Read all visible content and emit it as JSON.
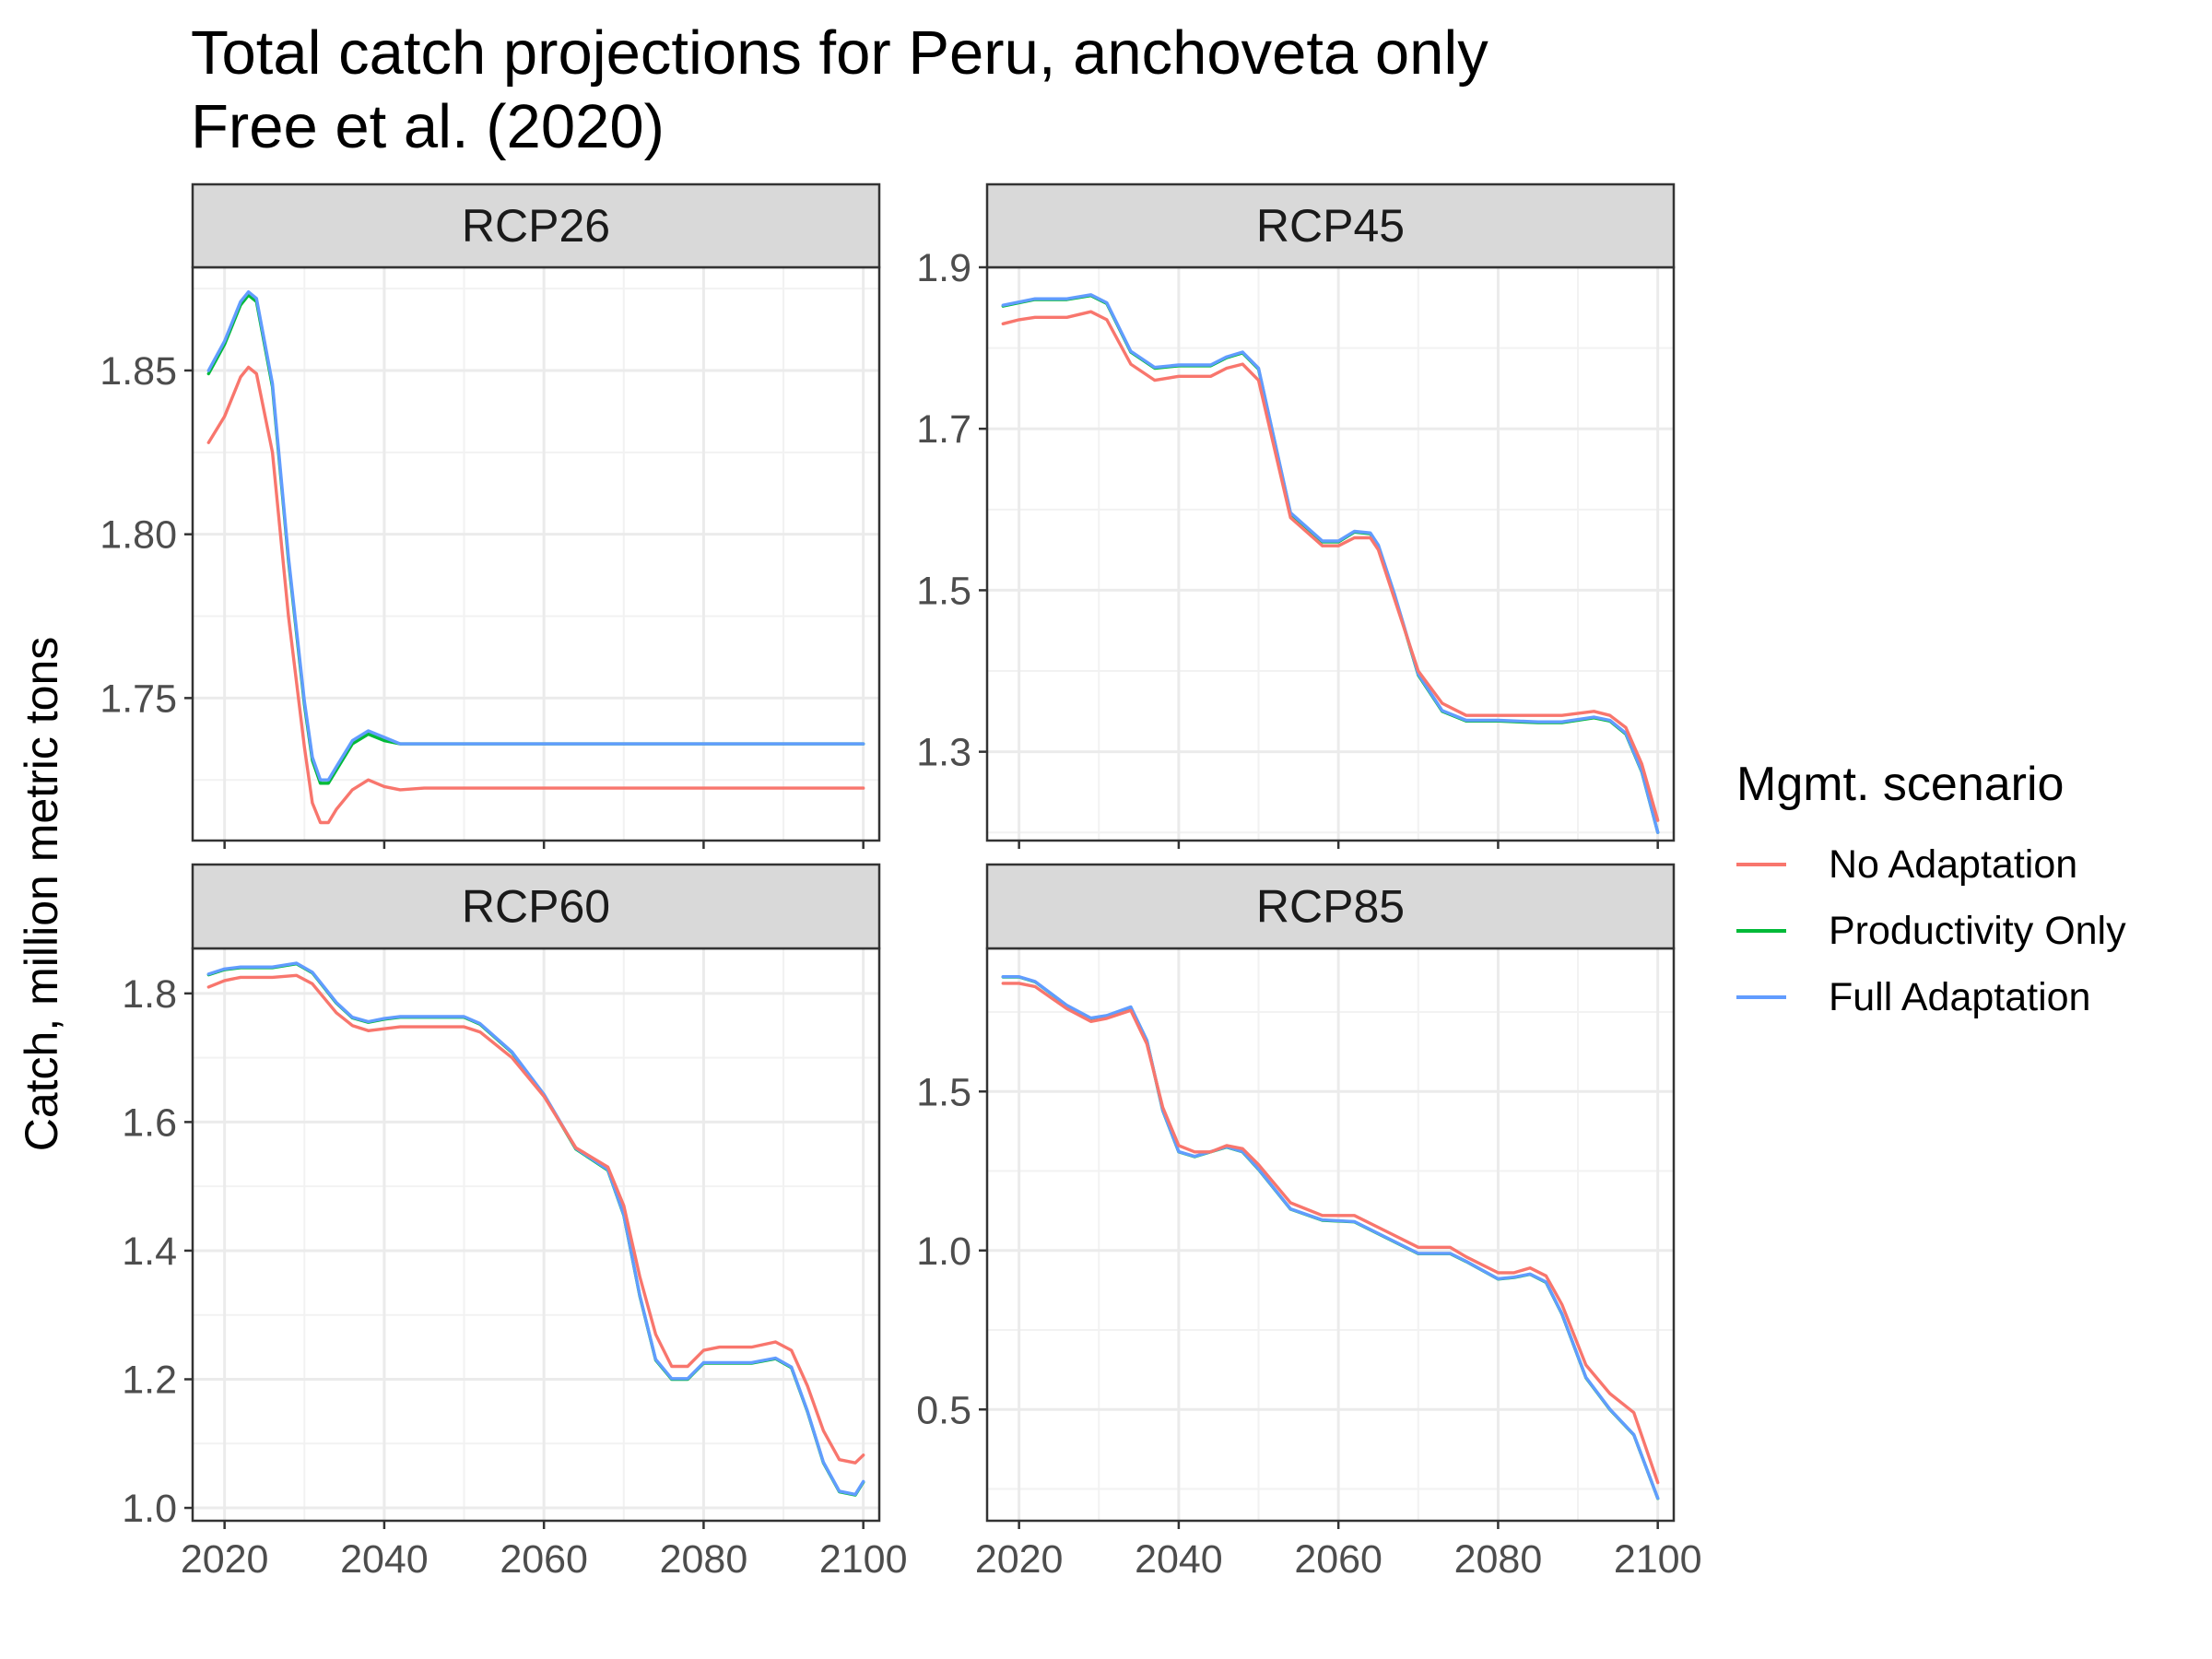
{
  "chart_data": {
    "type": "line",
    "title": "Total catch projections for Peru, anchoveta only",
    "subtitle": "Free et al. (2020)",
    "ylabel": "Catch, million metric tons",
    "xlabel": "",
    "legend": {
      "title": "Mgmt. scenario",
      "placement": "right",
      "entries": [
        {
          "name": "No Adaptation",
          "color": "#F8766D"
        },
        {
          "name": "Productivity Only",
          "color": "#00BA38"
        },
        {
          "name": "Full Adaptation",
          "color": "#619CFF"
        }
      ]
    },
    "grid": true,
    "panels": [
      {
        "label": "RCP26",
        "xlim": [
          2016,
          2102
        ],
        "ylim": [
          1.7065,
          1.8815
        ],
        "x_ticks": [
          2020,
          2040,
          2060,
          2080,
          2100
        ],
        "y_ticks": [
          1.75,
          1.8,
          1.85
        ],
        "y_tick_labels": [
          "1.75",
          "1.80",
          "1.85"
        ],
        "series": [
          {
            "name": "No Adaptation",
            "x": [
              2018,
              2020,
              2022,
              2023,
              2024,
              2026,
              2028,
              2030,
              2031,
              2032,
              2033,
              2034,
              2036,
              2038,
              2040,
              2042,
              2045,
              2050,
              2060,
              2070,
              2080,
              2090,
              2100
            ],
            "y": [
              1.828,
              1.836,
              1.848,
              1.851,
              1.849,
              1.825,
              1.775,
              1.735,
              1.718,
              1.712,
              1.712,
              1.716,
              1.722,
              1.725,
              1.723,
              1.722,
              1.7225,
              1.7225,
              1.7225,
              1.7225,
              1.7225,
              1.7225,
              1.7225
            ]
          },
          {
            "name": "Productivity Only",
            "x": [
              2018,
              2020,
              2022,
              2023,
              2024,
              2026,
              2028,
              2030,
              2031,
              2032,
              2033,
              2034,
              2036,
              2038,
              2040,
              2042,
              2045,
              2050,
              2060,
              2070,
              2080,
              2090,
              2100
            ],
            "y": [
              1.849,
              1.858,
              1.87,
              1.873,
              1.871,
              1.845,
              1.792,
              1.748,
              1.731,
              1.724,
              1.724,
              1.728,
              1.736,
              1.739,
              1.737,
              1.736,
              1.736,
              1.736,
              1.736,
              1.736,
              1.736,
              1.736,
              1.736
            ]
          },
          {
            "name": "Full Adaptation",
            "x": [
              2018,
              2020,
              2022,
              2023,
              2024,
              2026,
              2028,
              2030,
              2031,
              2032,
              2033,
              2034,
              2036,
              2038,
              2040,
              2042,
              2045,
              2050,
              2060,
              2070,
              2080,
              2090,
              2100
            ],
            "y": [
              1.85,
              1.859,
              1.871,
              1.874,
              1.872,
              1.846,
              1.793,
              1.749,
              1.732,
              1.725,
              1.725,
              1.729,
              1.737,
              1.74,
              1.738,
              1.736,
              1.736,
              1.736,
              1.736,
              1.736,
              1.736,
              1.736,
              1.736
            ]
          }
        ]
      },
      {
        "label": "RCP45",
        "xlim": [
          2016,
          2102
        ],
        "ylim": [
          1.19,
          1.9
        ],
        "x_ticks": [
          2020,
          2040,
          2060,
          2080,
          2100
        ],
        "y_ticks": [
          1.3,
          1.5,
          1.7,
          1.9
        ],
        "y_tick_labels": [
          "1.3",
          "1.5",
          "1.7",
          "1.9"
        ],
        "series": [
          {
            "name": "No Adaptation",
            "x": [
              2018,
              2020,
              2022,
              2026,
              2029,
              2031,
              2034,
              2037,
              2040,
              2044,
              2046,
              2048,
              2050,
              2054,
              2058,
              2060,
              2062,
              2064,
              2065,
              2067,
              2070,
              2073,
              2076,
              2080,
              2085,
              2088,
              2092,
              2094,
              2096,
              2098,
              2100
            ],
            "y": [
              1.83,
              1.835,
              1.838,
              1.838,
              1.845,
              1.835,
              1.78,
              1.76,
              1.765,
              1.765,
              1.775,
              1.78,
              1.76,
              1.59,
              1.555,
              1.555,
              1.565,
              1.565,
              1.55,
              1.49,
              1.4,
              1.36,
              1.345,
              1.345,
              1.345,
              1.345,
              1.35,
              1.345,
              1.33,
              1.285,
              1.215
            ]
          },
          {
            "name": "Productivity Only",
            "x": [
              2018,
              2020,
              2022,
              2026,
              2029,
              2031,
              2034,
              2037,
              2040,
              2044,
              2046,
              2048,
              2050,
              2054,
              2058,
              2060,
              2062,
              2064,
              2065,
              2067,
              2070,
              2073,
              2076,
              2080,
              2085,
              2088,
              2092,
              2094,
              2096,
              2098,
              2100
            ],
            "y": [
              1.852,
              1.856,
              1.86,
              1.86,
              1.865,
              1.855,
              1.795,
              1.775,
              1.778,
              1.778,
              1.788,
              1.794,
              1.774,
              1.595,
              1.56,
              1.56,
              1.572,
              1.57,
              1.555,
              1.495,
              1.395,
              1.35,
              1.338,
              1.338,
              1.336,
              1.336,
              1.342,
              1.338,
              1.322,
              1.275,
              1.2
            ]
          },
          {
            "name": "Full Adaptation",
            "x": [
              2018,
              2020,
              2022,
              2026,
              2029,
              2031,
              2034,
              2037,
              2040,
              2044,
              2046,
              2048,
              2050,
              2054,
              2058,
              2060,
              2062,
              2064,
              2065,
              2067,
              2070,
              2073,
              2076,
              2080,
              2085,
              2088,
              2092,
              2094,
              2096,
              2098,
              2100
            ],
            "y": [
              1.853,
              1.857,
              1.861,
              1.861,
              1.866,
              1.856,
              1.796,
              1.776,
              1.779,
              1.779,
              1.789,
              1.795,
              1.775,
              1.596,
              1.561,
              1.561,
              1.573,
              1.571,
              1.556,
              1.496,
              1.396,
              1.351,
              1.339,
              1.339,
              1.337,
              1.337,
              1.343,
              1.339,
              1.323,
              1.276,
              1.2
            ]
          }
        ]
      },
      {
        "label": "RCP60",
        "xlim": [
          2016,
          2102
        ],
        "ylim": [
          0.98,
          1.87
        ],
        "x_ticks": [
          2020,
          2040,
          2060,
          2080,
          2100
        ],
        "y_ticks": [
          1.0,
          1.2,
          1.4,
          1.6,
          1.8
        ],
        "y_tick_labels": [
          "1.0",
          "1.2",
          "1.4",
          "1.6",
          "1.8"
        ],
        "series": [
          {
            "name": "No Adaptation",
            "x": [
              2018,
              2020,
              2022,
              2026,
              2029,
              2031,
              2034,
              2036,
              2038,
              2040,
              2042,
              2046,
              2050,
              2052,
              2056,
              2060,
              2064,
              2068,
              2070,
              2072,
              2074,
              2076,
              2078,
              2080,
              2082,
              2086,
              2089,
              2091,
              2093,
              2095,
              2097,
              2099,
              2100
            ],
            "y": [
              1.81,
              1.82,
              1.825,
              1.825,
              1.828,
              1.815,
              1.77,
              1.75,
              1.742,
              1.745,
              1.748,
              1.748,
              1.748,
              1.74,
              1.7,
              1.64,
              1.56,
              1.53,
              1.47,
              1.36,
              1.27,
              1.22,
              1.22,
              1.245,
              1.25,
              1.25,
              1.258,
              1.245,
              1.19,
              1.12,
              1.075,
              1.07,
              1.082
            ]
          },
          {
            "name": "Productivity Only",
            "x": [
              2018,
              2020,
              2022,
              2026,
              2029,
              2031,
              2034,
              2036,
              2038,
              2040,
              2042,
              2046,
              2050,
              2052,
              2056,
              2060,
              2064,
              2068,
              2070,
              2072,
              2074,
              2076,
              2078,
              2080,
              2082,
              2086,
              2089,
              2091,
              2093,
              2095,
              2097,
              2099,
              2100
            ],
            "y": [
              1.829,
              1.837,
              1.84,
              1.84,
              1.846,
              1.832,
              1.785,
              1.762,
              1.755,
              1.76,
              1.763,
              1.763,
              1.763,
              1.752,
              1.708,
              1.642,
              1.558,
              1.525,
              1.455,
              1.33,
              1.23,
              1.2,
              1.2,
              1.225,
              1.225,
              1.225,
              1.232,
              1.218,
              1.15,
              1.07,
              1.025,
              1.02,
              1.04
            ]
          },
          {
            "name": "Full Adaptation",
            "x": [
              2018,
              2020,
              2022,
              2026,
              2029,
              2031,
              2034,
              2036,
              2038,
              2040,
              2042,
              2046,
              2050,
              2052,
              2056,
              2060,
              2064,
              2068,
              2070,
              2072,
              2074,
              2076,
              2078,
              2080,
              2082,
              2086,
              2089,
              2091,
              2093,
              2095,
              2097,
              2099,
              2100
            ],
            "y": [
              1.83,
              1.838,
              1.841,
              1.841,
              1.847,
              1.833,
              1.786,
              1.763,
              1.756,
              1.761,
              1.764,
              1.764,
              1.764,
              1.753,
              1.709,
              1.643,
              1.559,
              1.526,
              1.456,
              1.331,
              1.231,
              1.201,
              1.201,
              1.226,
              1.226,
              1.226,
              1.233,
              1.219,
              1.151,
              1.071,
              1.026,
              1.021,
              1.041
            ]
          }
        ]
      },
      {
        "label": "RCP85",
        "xlim": [
          2016,
          2102
        ],
        "ylim": [
          0.15,
          1.95
        ],
        "x_ticks": [
          2020,
          2040,
          2060,
          2080,
          2100
        ],
        "y_ticks": [
          0.5,
          1.0,
          1.5
        ],
        "y_tick_labels": [
          "0.5",
          "1.0",
          "1.5"
        ],
        "series": [
          {
            "name": "No Adaptation",
            "x": [
              2018,
              2020,
              2022,
              2026,
              2029,
              2031,
              2034,
              2036,
              2038,
              2040,
              2042,
              2044,
              2046,
              2048,
              2050,
              2054,
              2058,
              2062,
              2066,
              2070,
              2074,
              2076,
              2080,
              2082,
              2084,
              2086,
              2088,
              2091,
              2094,
              2097,
              2100
            ],
            "y": [
              1.84,
              1.84,
              1.83,
              1.76,
              1.72,
              1.73,
              1.755,
              1.65,
              1.45,
              1.33,
              1.31,
              1.31,
              1.33,
              1.32,
              1.27,
              1.15,
              1.11,
              1.11,
              1.06,
              1.01,
              1.01,
              0.98,
              0.93,
              0.93,
              0.945,
              0.92,
              0.83,
              0.64,
              0.55,
              0.49,
              0.27
            ]
          },
          {
            "name": "Productivity Only",
            "x": [
              2018,
              2020,
              2022,
              2026,
              2029,
              2031,
              2034,
              2036,
              2038,
              2040,
              2042,
              2044,
              2046,
              2048,
              2050,
              2054,
              2058,
              2062,
              2066,
              2070,
              2074,
              2076,
              2080,
              2082,
              2084,
              2086,
              2088,
              2091,
              2094,
              2097,
              2100
            ],
            "y": [
              1.86,
              1.86,
              1.845,
              1.77,
              1.73,
              1.738,
              1.765,
              1.66,
              1.44,
              1.31,
              1.295,
              1.31,
              1.325,
              1.31,
              1.255,
              1.13,
              1.095,
              1.09,
              1.04,
              0.99,
              0.99,
              0.965,
              0.91,
              0.915,
              0.925,
              0.9,
              0.8,
              0.6,
              0.5,
              0.42,
              0.22
            ]
          },
          {
            "name": "Full Adaptation",
            "x": [
              2018,
              2020,
              2022,
              2026,
              2029,
              2031,
              2034,
              2036,
              2038,
              2040,
              2042,
              2044,
              2046,
              2048,
              2050,
              2054,
              2058,
              2062,
              2066,
              2070,
              2074,
              2076,
              2080,
              2082,
              2084,
              2086,
              2088,
              2091,
              2094,
              2097,
              2100
            ],
            "y": [
              1.861,
              1.861,
              1.846,
              1.771,
              1.731,
              1.739,
              1.766,
              1.661,
              1.441,
              1.311,
              1.296,
              1.311,
              1.326,
              1.311,
              1.256,
              1.131,
              1.096,
              1.091,
              1.041,
              0.991,
              0.991,
              0.966,
              0.911,
              0.916,
              0.926,
              0.901,
              0.801,
              0.601,
              0.501,
              0.421,
              0.221
            ]
          }
        ]
      }
    ]
  }
}
